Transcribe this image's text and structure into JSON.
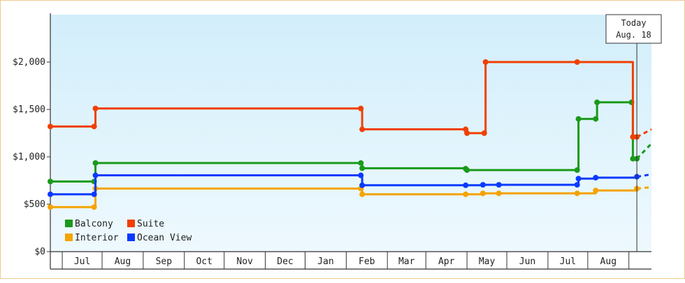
{
  "chart_data": {
    "type": "line",
    "step": true,
    "x_axis": {
      "type": "time",
      "domain": [
        "2023-06-03",
        "2024-08-29"
      ],
      "month_boundaries": [
        "2023-06-12",
        "2023-07-12",
        "2023-08-12",
        "2023-09-12",
        "2023-10-12",
        "2023-11-12",
        "2023-12-12",
        "2024-01-12",
        "2024-02-12",
        "2024-03-12",
        "2024-04-12",
        "2024-05-12",
        "2024-06-12",
        "2024-07-12",
        "2024-08-12"
      ],
      "month_labels": [
        {
          "label": "Jul",
          "date": "2023-07-12"
        },
        {
          "label": "Aug",
          "date": "2023-08-12"
        },
        {
          "label": "Sep",
          "date": "2023-09-12"
        },
        {
          "label": "Oct",
          "date": "2023-10-12"
        },
        {
          "label": "Nov",
          "date": "2023-11-12"
        },
        {
          "label": "Dec",
          "date": "2023-12-12"
        },
        {
          "label": "Jan",
          "date": "2024-01-12"
        },
        {
          "label": "Feb",
          "date": "2024-02-12"
        },
        {
          "label": "Mar",
          "date": "2024-03-12"
        },
        {
          "label": "Apr",
          "date": "2024-04-12"
        },
        {
          "label": "May",
          "date": "2024-05-12"
        },
        {
          "label": "Jun",
          "date": "2024-06-12"
        },
        {
          "label": "Jul",
          "date": "2024-07-12"
        },
        {
          "label": "Aug",
          "date": "2024-08-12"
        }
      ]
    },
    "y_axis": {
      "range": [
        0,
        2500
      ],
      "ticks": [
        0,
        500,
        1000,
        1500,
        2000
      ],
      "tick_labels": [
        "$0",
        "$500",
        "$1,000",
        "$1,500",
        "$2,000"
      ]
    },
    "today": {
      "line1": "Today",
      "line2": "Aug. 18",
      "date": "2024-08-18"
    },
    "projection_end": "2024-08-29",
    "series": [
      {
        "name": "Balcony",
        "color": "#1a9a1a",
        "points": [
          [
            "2023-06-03",
            740
          ],
          [
            "2023-07-06",
            740
          ],
          [
            "2023-07-07",
            935
          ],
          [
            "2024-01-23",
            935
          ],
          [
            "2024-01-24",
            880
          ],
          [
            "2024-04-11",
            875
          ],
          [
            "2024-04-12",
            860
          ],
          [
            "2024-07-04",
            860
          ],
          [
            "2024-07-05",
            1400
          ],
          [
            "2024-07-18",
            1400
          ],
          [
            "2024-07-19",
            1575
          ],
          [
            "2024-08-14",
            1575
          ],
          [
            "2024-08-15",
            980
          ],
          [
            "2024-08-18",
            980
          ]
        ],
        "projection": 1140
      },
      {
        "name": "Suite",
        "color": "#f04000",
        "points": [
          [
            "2023-06-03",
            1320
          ],
          [
            "2023-07-06",
            1320
          ],
          [
            "2023-07-07",
            1510
          ],
          [
            "2024-01-23",
            1510
          ],
          [
            "2024-01-24",
            1290
          ],
          [
            "2024-04-11",
            1290
          ],
          [
            "2024-04-12",
            1250
          ],
          [
            "2024-04-25",
            1250
          ],
          [
            "2024-04-26",
            2000
          ],
          [
            "2024-07-04",
            2000
          ],
          [
            "2024-08-15",
            1210
          ],
          [
            "2024-08-18",
            1210
          ]
        ],
        "projection": 1290
      },
      {
        "name": "Interior",
        "color": "#f5a300",
        "points": [
          [
            "2023-06-03",
            470
          ],
          [
            "2023-07-06",
            470
          ],
          [
            "2023-07-07",
            665
          ],
          [
            "2024-01-23",
            665
          ],
          [
            "2024-01-24",
            605
          ],
          [
            "2024-04-11",
            605
          ],
          [
            "2024-04-24",
            615
          ],
          [
            "2024-05-06",
            615
          ],
          [
            "2024-07-04",
            615
          ],
          [
            "2024-07-18",
            645
          ],
          [
            "2024-08-18",
            665
          ]
        ],
        "projection": 680
      },
      {
        "name": "Ocean View",
        "color": "#0a3aff",
        "points": [
          [
            "2023-06-03",
            605
          ],
          [
            "2023-07-06",
            605
          ],
          [
            "2023-07-07",
            805
          ],
          [
            "2024-01-23",
            805
          ],
          [
            "2024-01-24",
            700
          ],
          [
            "2024-04-11",
            700
          ],
          [
            "2024-04-24",
            705
          ],
          [
            "2024-05-06",
            705
          ],
          [
            "2024-07-04",
            705
          ],
          [
            "2024-07-05",
            770
          ],
          [
            "2024-07-18",
            780
          ],
          [
            "2024-08-18",
            790
          ]
        ],
        "projection": 815
      }
    ],
    "legend": {
      "position": "bottom-left",
      "items": [
        "Balcony",
        "Suite",
        "Interior",
        "Ocean View"
      ]
    },
    "background_gradient": [
      "#d2eefb",
      "#eef9fe"
    ]
  }
}
